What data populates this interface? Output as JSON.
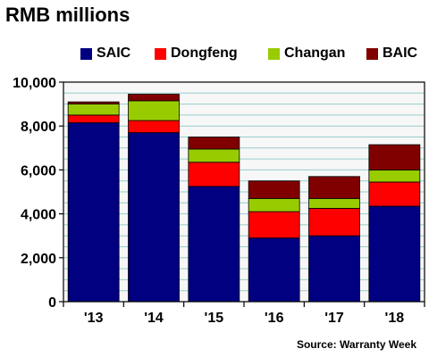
{
  "chart_data": {
    "type": "bar",
    "stacked": true,
    "title": "RMB millions",
    "categories": [
      "'13",
      "'14",
      "'15",
      "'16",
      "'17",
      "'18"
    ],
    "series": [
      {
        "name": "SAIC",
        "color": "#000080",
        "values": [
          8150,
          7700,
          5250,
          2900,
          3000,
          4350
        ]
      },
      {
        "name": "Dongfeng",
        "color": "#ff0000",
        "values": [
          350,
          550,
          1100,
          1200,
          1250,
          1100
        ]
      },
      {
        "name": "Changan",
        "color": "#99cc00",
        "values": [
          500,
          900,
          600,
          600,
          450,
          550
        ]
      },
      {
        "name": "BAIC",
        "color": "#800000",
        "values": [
          100,
          300,
          550,
          800,
          1000,
          1150
        ]
      }
    ],
    "ylim": [
      0,
      10000
    ],
    "yticks": [
      "0",
      "2,000",
      "4,000",
      "6,000",
      "8,000",
      "10,000"
    ],
    "ytick_values": [
      0,
      2000,
      4000,
      6000,
      8000,
      10000
    ],
    "grid": true,
    "legend_position": "top",
    "plot_background": "#f7f7f7",
    "grid_color": "#99cccc",
    "source": "Source: Warranty Week"
  }
}
